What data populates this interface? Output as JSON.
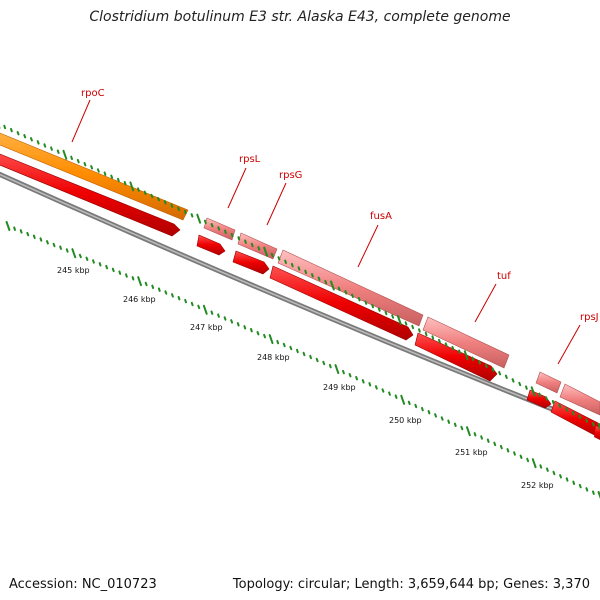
{
  "title": "Clostridium botulinum E3 str. Alaska E43, complete genome",
  "accession": "Accession: NC_010723",
  "summary": "Topology: circular; Length: 3,659,644 bp; Genes: 3,370",
  "colors": {
    "orange_gene": "#ff8c00",
    "pink_gene": "#f08080",
    "red_gene": "#ee0000",
    "backbone": "#808080",
    "ticks": "#228b22",
    "label": "#cc0000"
  },
  "gene_labels": [
    "rpoC",
    "rpsL",
    "rpsG",
    "fusA",
    "tuf",
    "rpsJ"
  ],
  "kbp_labels": [
    "245 kbp",
    "246 kbp",
    "247 kbp",
    "248 kbp",
    "249 kbp",
    "250 kbp",
    "251 kbp",
    "252 kbp"
  ]
}
